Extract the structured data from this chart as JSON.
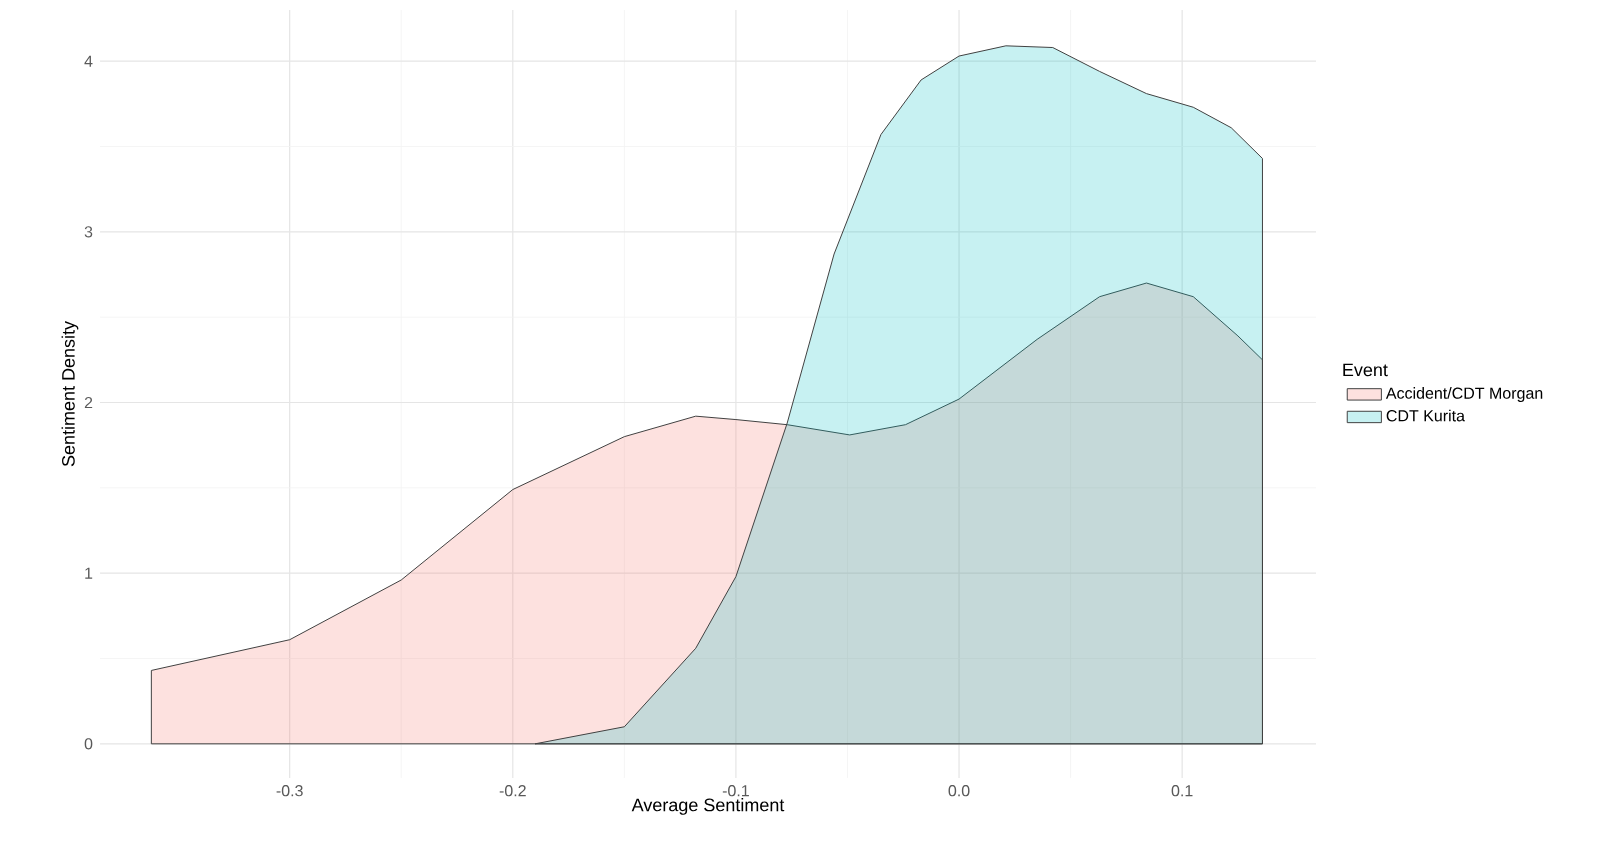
{
  "chart_data": {
    "type": "area",
    "xlabel": "Average Sentiment",
    "ylabel": "Sentiment Density",
    "legend_title": "Event",
    "legend": "right",
    "grid": true,
    "marker": "none",
    "xlim": [
      -0.385,
      0.16
    ],
    "ylim": [
      -0.2,
      4.3
    ],
    "xticks": [
      -0.3,
      -0.2,
      -0.1,
      {
        "value": 0,
        "label": "0.0"
      },
      0.1
    ],
    "yticks": [
      0,
      1,
      2,
      3,
      4
    ],
    "series": [
      {
        "name": "Accident/CDT Morgan",
        "color": "#F8766D",
        "x": [
          -0.362,
          -0.3,
          -0.25,
          -0.2,
          -0.15,
          -0.118,
          -0.1,
          -0.077,
          -0.049,
          -0.024,
          0,
          0.035,
          0.063,
          0.084,
          0.105,
          0.125,
          0.136
        ],
        "values": [
          0.43,
          0.61,
          0.96,
          1.49,
          1.8,
          1.92,
          1.9,
          1.87,
          1.81,
          1.87,
          2.02,
          2.37,
          2.62,
          2.7,
          2.62,
          2.39,
          2.25
        ]
      },
      {
        "name": "CDT Kurita",
        "color": "#00BFC4",
        "x": [
          -0.19,
          -0.15,
          -0.118,
          -0.1,
          -0.077,
          -0.056,
          -0.035,
          -0.017,
          0,
          0.021,
          0.042,
          0.063,
          0.084,
          0.105,
          0.122,
          0.136
        ],
        "values": [
          0,
          0.1,
          0.56,
          0.98,
          1.88,
          2.87,
          3.57,
          3.89,
          4.03,
          4.09,
          4.08,
          3.94,
          3.81,
          3.73,
          3.61,
          3.43
        ]
      }
    ]
  }
}
